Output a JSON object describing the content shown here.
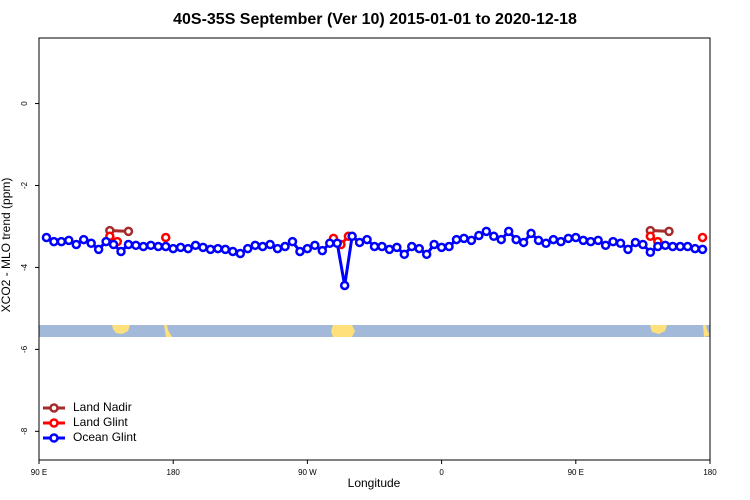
{
  "chart_data": {
    "type": "line",
    "title": "40S-35S September (Ver 10)   2015-01-01 to 2020-12-18",
    "x_label": "Longitude",
    "y_label": "XCO2 - MLO trend (ppm)",
    "xlim": [
      90,
      540
    ],
    "ylim": [
      -8.7,
      1.6
    ],
    "xticks": [
      {
        "value": 90,
        "label": "90 E"
      },
      {
        "value": 180,
        "label": "180"
      },
      {
        "value": 270,
        "label": "90 W"
      },
      {
        "value": 360,
        "label": "0"
      },
      {
        "value": 450,
        "label": "90 E"
      },
      {
        "value": 540,
        "label": "180"
      }
    ],
    "yticks": [
      0,
      -2,
      -4,
      -6,
      -8
    ],
    "legend_position": "bottom-left",
    "series": [
      {
        "name": "Land Nadir",
        "color": "#a52a2a",
        "x": [
          137.5,
          150,
          325,
          500,
          512.5
        ],
        "values": [
          -3.1,
          -3.12,
          null,
          -3.1,
          -3.12
        ]
      },
      {
        "name": "Land Glint",
        "color": "#ff0000",
        "x": [
          137.5,
          142.5,
          160,
          175,
          230,
          287.5,
          292.5,
          297.5,
          400,
          500,
          505,
          520,
          535
        ],
        "values": [
          -3.24,
          -3.37,
          null,
          -3.27,
          null,
          -3.29,
          -3.44,
          -3.24,
          null,
          -3.24,
          -3.37,
          null,
          -3.27
        ]
      },
      {
        "name": "Ocean Glint",
        "color": "#0000ff",
        "x": [
          95,
          100,
          105,
          110,
          115,
          120,
          125,
          130,
          135,
          140,
          145,
          150,
          155,
          160,
          165,
          170,
          175,
          180,
          185,
          190,
          195,
          200,
          205,
          210,
          215,
          220,
          225,
          230,
          235,
          240,
          245,
          250,
          255,
          260,
          265,
          270,
          275,
          280,
          285,
          290,
          295,
          300,
          305,
          310,
          315,
          320,
          325,
          330,
          335,
          340,
          345,
          350,
          355,
          360,
          365,
          370,
          375,
          380,
          385,
          390,
          395,
          400,
          405,
          410,
          415,
          420,
          425,
          430,
          435,
          440,
          445,
          450,
          455,
          460,
          465,
          470,
          475,
          480,
          485,
          490,
          495,
          500,
          505,
          510,
          515,
          520,
          525,
          530,
          535
        ],
        "values": [
          -3.27,
          -3.37,
          -3.37,
          -3.34,
          -3.44,
          -3.32,
          -3.41,
          -3.56,
          -3.37,
          -3.44,
          -3.61,
          -3.44,
          -3.46,
          -3.49,
          -3.46,
          -3.49,
          -3.49,
          -3.54,
          -3.51,
          -3.54,
          -3.46,
          -3.51,
          -3.56,
          -3.54,
          -3.56,
          -3.61,
          -3.66,
          -3.54,
          -3.46,
          -3.49,
          -3.44,
          -3.54,
          -3.49,
          -3.37,
          -3.61,
          -3.54,
          -3.46,
          -3.59,
          -3.41,
          -3.41,
          -4.44,
          -3.24,
          -3.39,
          -3.32,
          -3.49,
          -3.49,
          -3.56,
          -3.51,
          -3.68,
          -3.49,
          -3.54,
          -3.68,
          -3.44,
          -3.51,
          -3.49,
          -3.32,
          -3.29,
          -3.34,
          -3.22,
          -3.12,
          -3.24,
          -3.32,
          -3.12,
          -3.32,
          -3.39,
          -3.17,
          -3.34,
          -3.41,
          -3.32,
          -3.37,
          -3.29,
          -3.27,
          -3.34,
          -3.37,
          -3.34,
          -3.46,
          -3.37,
          -3.41,
          -3.56,
          -3.39,
          -3.44,
          -3.63,
          -3.49,
          -3.46,
          -3.49,
          -3.49,
          -3.49,
          -3.54,
          -3.56
        ]
      }
    ]
  }
}
